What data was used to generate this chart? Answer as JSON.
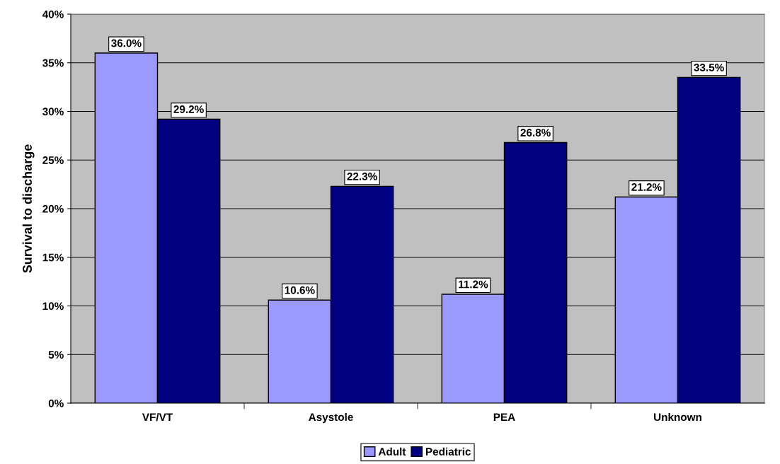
{
  "chart_data": {
    "type": "bar",
    "ylabel": "Survival to discharge",
    "categories": [
      "VF/VT",
      "Asystole",
      "PEA",
      "Unknown"
    ],
    "series": [
      {
        "name": "Adult",
        "color": "#9999ff",
        "values": [
          36.0,
          10.6,
          11.2,
          21.2
        ],
        "value_labels": [
          "36.0%",
          "10.6%",
          "11.2%",
          "21.2%"
        ]
      },
      {
        "name": "Pediatric",
        "color": "#000080",
        "values": [
          29.2,
          22.3,
          26.8,
          33.5
        ],
        "value_labels": [
          "29.2%",
          "22.3%",
          "26.8%",
          "33.5%"
        ]
      }
    ],
    "ylim": [
      0,
      40
    ],
    "yticks": [
      {
        "value": 0,
        "label": "0%"
      },
      {
        "value": 5,
        "label": "5%"
      },
      {
        "value": 10,
        "label": "10%"
      },
      {
        "value": 15,
        "label": "15%"
      },
      {
        "value": 20,
        "label": "20%"
      },
      {
        "value": 25,
        "label": "25%"
      },
      {
        "value": 30,
        "label": "30%"
      },
      {
        "value": 35,
        "label": "35%"
      },
      {
        "value": 40,
        "label": "40%"
      }
    ],
    "grid": "y",
    "legend": "bottom"
  }
}
